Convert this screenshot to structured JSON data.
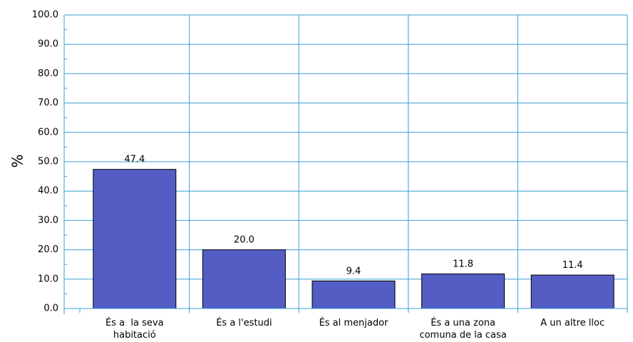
{
  "chart_data": {
    "type": "bar",
    "title": "",
    "xlabel": "",
    "ylabel": "%",
    "ylim": [
      0,
      100
    ],
    "yticks": [
      "0.0",
      "10.0",
      "20.0",
      "30.0",
      "40.0",
      "50.0",
      "60.0",
      "70.0",
      "80.0",
      "90.0",
      "100.0"
    ],
    "categories": [
      [
        "És a  la seva",
        "habitació"
      ],
      [
        "És a l'estudi"
      ],
      [
        "És al menjador"
      ],
      [
        "És a una zona",
        "comuna de la casa"
      ],
      [
        "A un altre lloc"
      ]
    ],
    "values": [
      47.4,
      20.0,
      9.4,
      11.8,
      11.4
    ],
    "value_labels": [
      "47.4",
      "20.0",
      "9.4",
      "11.8",
      "11.4"
    ],
    "grid": true,
    "colors": {
      "bar": "#535dc4",
      "bar_border": "#000000",
      "grid": "#3a9fdb",
      "axis": "#3a9fdb"
    }
  }
}
